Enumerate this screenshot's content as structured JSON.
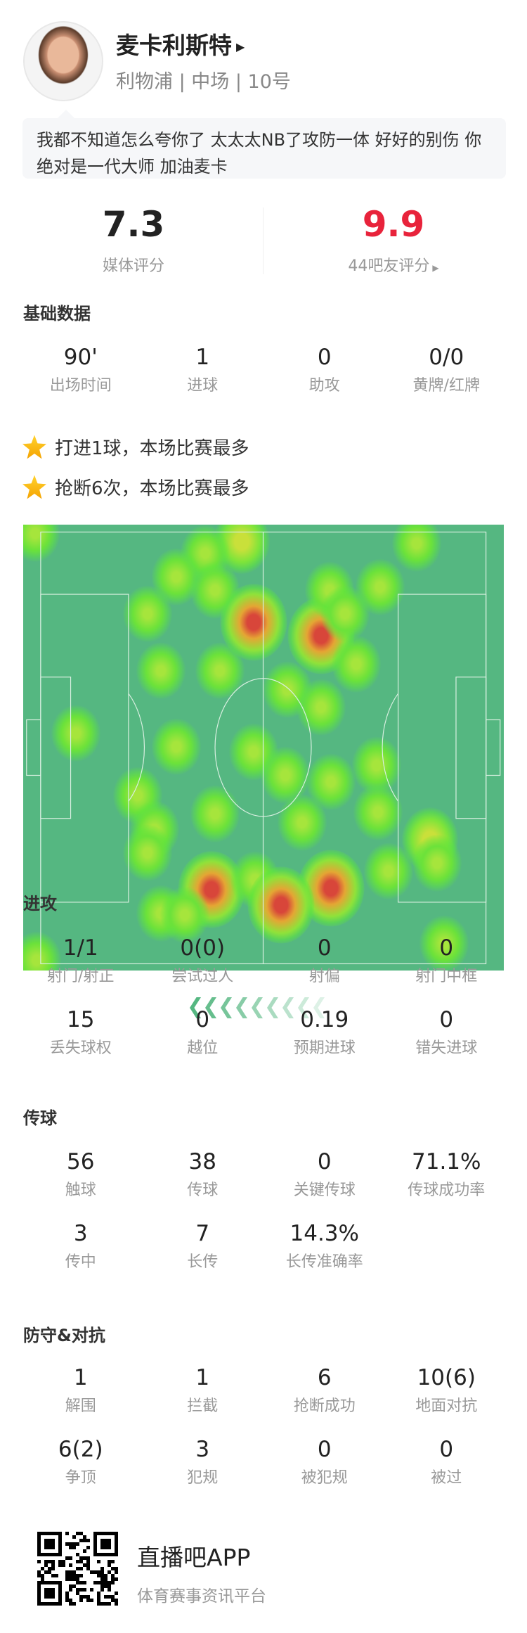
{
  "player": {
    "name": "麦卡利斯特",
    "team": "利物浦",
    "position": "中场",
    "number": "10号",
    "sub_separator": " | "
  },
  "comment": "我都不知道怎么夸你了 太太太NB了攻防一体 好好的别伤 你绝对是一代大师 加油麦卡",
  "ratings": {
    "media": {
      "value": "7.3",
      "label": "媒体评分"
    },
    "fans": {
      "value": "9.9",
      "label": "44吧友评分",
      "color": "#e8233b"
    }
  },
  "basic": {
    "title": "基础数据",
    "stats": [
      {
        "v": "90'",
        "l": "出场时间"
      },
      {
        "v": "1",
        "l": "进球"
      },
      {
        "v": "0",
        "l": "助攻"
      },
      {
        "v": "0/0",
        "l": "黄牌/红牌"
      }
    ]
  },
  "highlights": [
    "打进1球，本场比赛最多",
    "抢断6次，本场比赛最多"
  ],
  "heatmap": {
    "attack_direction": "left",
    "pitch_units": "percent",
    "points": [
      [
        2.5,
        2,
        1
      ],
      [
        45.5,
        3.8,
        2
      ],
      [
        37.8,
        6.4,
        1
      ],
      [
        31.9,
        11.7,
        1
      ],
      [
        39.9,
        14.7,
        1
      ],
      [
        25.9,
        20,
        1
      ],
      [
        48,
        21.9,
        3
      ],
      [
        62,
        24.9,
        3
      ],
      [
        63.7,
        14.7,
        1
      ],
      [
        67,
        20,
        1
      ],
      [
        74.2,
        14,
        1
      ],
      [
        69.3,
        31.3,
        1
      ],
      [
        28.7,
        32.8,
        1
      ],
      [
        41,
        32.8,
        1
      ],
      [
        55,
        37,
        1
      ],
      [
        62,
        41,
        1
      ],
      [
        81.9,
        4.2,
        1
      ],
      [
        10.9,
        46.8,
        1
      ],
      [
        31.9,
        49.8,
        1
      ],
      [
        48,
        51,
        1
      ],
      [
        54.6,
        56.2,
        1
      ],
      [
        64.1,
        57.7,
        1
      ],
      [
        73.5,
        54,
        1
      ],
      [
        23.8,
        60.8,
        1
      ],
      [
        27.3,
        68.3,
        1
      ],
      [
        39.9,
        64.9,
        1
      ],
      [
        58.1,
        66.8,
        1
      ],
      [
        73.9,
        64.5,
        1
      ],
      [
        84.7,
        70.6,
        2
      ],
      [
        86.1,
        75.9,
        1
      ],
      [
        25.9,
        73.6,
        1
      ],
      [
        39.2,
        81.9,
        3
      ],
      [
        48.3,
        79.6,
        1
      ],
      [
        64.1,
        81.5,
        3
      ],
      [
        76,
        77.7,
        1
      ],
      [
        53.6,
        85.3,
        3
      ],
      [
        28.7,
        87.2,
        1
      ],
      [
        33.6,
        87.5,
        1
      ],
      [
        87.5,
        94,
        1
      ],
      [
        2.8,
        97.7,
        1
      ]
    ]
  },
  "attack": {
    "title": "进攻",
    "stats": [
      {
        "v": "1/1",
        "l": "射门/射正"
      },
      {
        "v": "0(0)",
        "l": "尝试过人"
      },
      {
        "v": "0",
        "l": "射偏"
      },
      {
        "v": "0",
        "l": "射门中框"
      },
      {
        "v": "15",
        "l": "丢失球权"
      },
      {
        "v": "0",
        "l": "越位"
      },
      {
        "v": "0.19",
        "l": "预期进球"
      },
      {
        "v": "0",
        "l": "错失进球"
      }
    ]
  },
  "passing": {
    "title": "传球",
    "stats": [
      {
        "v": "56",
        "l": "触球"
      },
      {
        "v": "38",
        "l": "传球"
      },
      {
        "v": "0",
        "l": "关键传球"
      },
      {
        "v": "71.1%",
        "l": "传球成功率"
      },
      {
        "v": "3",
        "l": "传中"
      },
      {
        "v": "7",
        "l": "长传"
      },
      {
        "v": "14.3%",
        "l": "长传准确率"
      }
    ]
  },
  "defense": {
    "title": "防守&对抗",
    "stats": [
      {
        "v": "1",
        "l": "解围"
      },
      {
        "v": "1",
        "l": "拦截"
      },
      {
        "v": "6",
        "l": "抢断成功"
      },
      {
        "v": "10(6)",
        "l": "地面对抗"
      },
      {
        "v": "6(2)",
        "l": "争顶"
      },
      {
        "v": "3",
        "l": "犯规"
      },
      {
        "v": "0",
        "l": "被犯规"
      },
      {
        "v": "0",
        "l": "被过"
      }
    ]
  },
  "footer": {
    "app": "直播吧APP",
    "slogan": "体育赛事资讯平台"
  }
}
